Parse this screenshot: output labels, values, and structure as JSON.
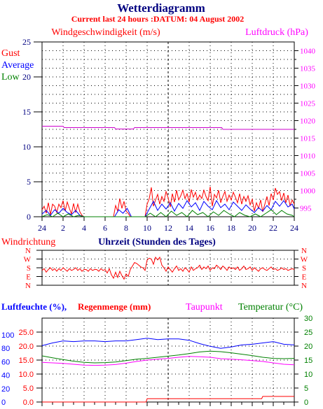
{
  "page": {
    "title": "Wetterdiagramm",
    "subtitle": "Current last 24 hours :DATUM: 04 August 2002"
  },
  "colors": {
    "red": "#ff0000",
    "blue": "#0000ff",
    "green": "#008000",
    "magenta": "#ff00ff",
    "navy": "#000080",
    "black": "#000000"
  },
  "chart_data": [
    {
      "id": "wind",
      "type": "line",
      "title": "Windgeschwindigkeit (m/s)",
      "y2_title": "Luftdruck (hPa)",
      "legend_labels": [
        "Gust",
        "Average",
        "Low"
      ],
      "xlabel": "Uhrzeit (Stunden des Tages)",
      "x_ticks": [
        "24",
        "2",
        "4",
        "6",
        "8",
        "10",
        "12",
        "14",
        "16",
        "18",
        "20",
        "22",
        "24"
      ],
      "y_ticks": [
        "0",
        "5",
        "10",
        "15",
        "20",
        "25"
      ],
      "ylim": [
        0,
        25
      ],
      "y2_ticks": [
        "995",
        "1000",
        "1005",
        "1010",
        "1015",
        "1020",
        "1025",
        "1030",
        "1035",
        "1040"
      ],
      "y2lim": [
        992.5,
        1042.5
      ],
      "x_range_hours": [
        0,
        24
      ],
      "grid": true,
      "series": [
        {
          "name": "Gust",
          "color": "#ff0000",
          "x": [
            0.0,
            0.2,
            0.4,
            0.6,
            0.8,
            1.0,
            1.2,
            1.4,
            1.6,
            1.8,
            2.0,
            2.2,
            2.4,
            2.6,
            2.8,
            3.0,
            3.2,
            3.4,
            3.6,
            3.8,
            4.0,
            5.0,
            6.0,
            6.8,
            7.0,
            7.2,
            7.4,
            7.6,
            7.8,
            8.0,
            8.2,
            8.4,
            8.6,
            8.8,
            9.0,
            9.4,
            9.8,
            10.0,
            10.2,
            10.4,
            10.6,
            10.8,
            11.0,
            11.2,
            11.4,
            11.6,
            11.8,
            12.0,
            12.2,
            12.4,
            12.6,
            12.8,
            13.0,
            13.2,
            13.4,
            13.6,
            13.8,
            14.0,
            14.2,
            14.4,
            14.6,
            14.8,
            15.0,
            15.2,
            15.4,
            15.6,
            15.8,
            16.0,
            16.2,
            16.4,
            16.6,
            16.8,
            17.0,
            17.2,
            17.4,
            17.6,
            17.8,
            18.0,
            18.2,
            18.4,
            18.6,
            18.8,
            19.0,
            19.2,
            19.4,
            19.6,
            19.8,
            20.0,
            20.2,
            20.4,
            20.6,
            20.8,
            21.0,
            21.2,
            21.4,
            21.6,
            21.8,
            22.0,
            22.2,
            22.4,
            22.6,
            22.8,
            23.0,
            23.2,
            23.4,
            23.6,
            23.8,
            24.0
          ],
          "values": [
            1.0,
            1.5,
            0.5,
            2.0,
            0.3,
            1.8,
            1.5,
            0.6,
            1.8,
            1.3,
            2.3,
            0.8,
            2.1,
            1.2,
            0.4,
            1.9,
            0.6,
            1.8,
            0.7,
            0.2,
            0.0,
            0.0,
            0.0,
            0.0,
            1.6,
            0.8,
            2.6,
            1.2,
            2.2,
            0.8,
            0.5,
            0.0,
            0.0,
            0.0,
            0.0,
            0.0,
            0.0,
            1.8,
            2.6,
            4.2,
            1.5,
            2.4,
            3.2,
            1.8,
            2.9,
            2.2,
            3.6,
            2.7,
            1.4,
            3.3,
            2.1,
            3.8,
            2.4,
            3.0,
            3.8,
            2.6,
            3.3,
            2.1,
            3.9,
            2.8,
            3.5,
            2.4,
            3.1,
            2.6,
            3.8,
            2.9,
            2.3,
            4.3,
            1.5,
            3.2,
            2.7,
            3.8,
            2.0,
            2.9,
            3.6,
            2.2,
            3.1,
            2.4,
            3.5,
            2.8,
            2.0,
            3.3,
            1.8,
            2.9,
            2.2,
            3.0,
            1.7,
            2.5,
            0.8,
            2.0,
            1.2,
            2.4,
            0.7,
            1.8,
            2.9,
            1.6,
            3.3,
            2.4,
            4.1,
            3.2,
            3.6,
            2.3,
            3.4,
            2.0,
            3.1,
            1.6,
            2.4,
            1.8
          ]
        },
        {
          "name": "Average",
          "color": "#0000ff",
          "x": [
            0.0,
            0.4,
            0.8,
            1.2,
            1.6,
            2.0,
            2.4,
            2.8,
            3.2,
            3.6,
            4.0,
            6.9,
            7.3,
            7.7,
            8.1,
            8.5,
            9.8,
            10.2,
            10.6,
            11.0,
            11.4,
            11.8,
            12.2,
            12.6,
            13.0,
            13.4,
            13.8,
            14.2,
            14.6,
            15.0,
            15.4,
            15.8,
            16.2,
            16.6,
            17.0,
            17.4,
            17.8,
            18.2,
            18.6,
            19.0,
            19.4,
            19.8,
            20.2,
            20.6,
            21.0,
            21.4,
            21.8,
            22.2,
            22.6,
            23.0,
            23.4,
            23.8,
            24.0
          ],
          "values": [
            0.4,
            0.9,
            0.2,
            1.0,
            0.5,
            1.2,
            0.6,
            0.3,
            0.9,
            0.2,
            0.0,
            0.0,
            1.0,
            0.5,
            1.2,
            0.0,
            0.0,
            1.1,
            2.2,
            0.9,
            1.8,
            1.1,
            2.0,
            0.8,
            1.9,
            1.2,
            2.3,
            1.4,
            2.0,
            0.9,
            2.2,
            1.5,
            1.0,
            2.3,
            1.3,
            1.8,
            1.0,
            2.1,
            1.5,
            0.9,
            1.7,
            1.1,
            0.6,
            1.3,
            0.8,
            1.6,
            1.0,
            2.2,
            1.5,
            2.3,
            1.4,
            1.8,
            1.1
          ]
        },
        {
          "name": "Low",
          "color": "#008000",
          "x": [
            0.0,
            0.5,
            1.0,
            1.5,
            2.0,
            2.5,
            3.0,
            3.5,
            4.0,
            9.8,
            10.3,
            10.8,
            11.3,
            11.8,
            12.3,
            12.8,
            13.3,
            13.8,
            14.3,
            14.8,
            15.3,
            15.8,
            16.3,
            16.8,
            17.3,
            17.8,
            18.3,
            18.8,
            19.3,
            19.8,
            20.3,
            20.8,
            21.3,
            21.8,
            22.3,
            22.8,
            23.3,
            23.8,
            24.0
          ],
          "values": [
            0.0,
            0.3,
            0.0,
            0.5,
            0.0,
            0.4,
            0.0,
            0.2,
            0.0,
            0.0,
            0.5,
            0.0,
            0.6,
            0.0,
            0.8,
            0.2,
            0.6,
            0.0,
            0.9,
            0.3,
            0.6,
            0.0,
            0.7,
            0.2,
            0.9,
            0.4,
            0.0,
            0.6,
            0.2,
            0.0,
            0.4,
            0.0,
            0.5,
            1.0,
            0.3,
            0.9,
            0.4,
            0.2,
            0.0
          ]
        },
        {
          "name": "Luftdruck",
          "axis": "y2",
          "color": "#cc00cc",
          "x": [
            0.0,
            2.0,
            2.1,
            6.9,
            7.0,
            8.7,
            8.8,
            17.1,
            17.2,
            24.0
          ],
          "values": [
            1018.4,
            1018.4,
            1018.0,
            1018.0,
            1017.6,
            1017.6,
            1018.0,
            1018.0,
            1017.5,
            1017.5
          ]
        }
      ]
    },
    {
      "id": "direction",
      "type": "line",
      "title": "Windrichtung",
      "y_ticks": [
        "N",
        "W",
        "S",
        "E",
        "N"
      ],
      "ylim": [
        0,
        4
      ],
      "x_range_hours": [
        0,
        24
      ],
      "grid": true,
      "series": [
        {
          "name": "Windrichtung",
          "color": "#ff0000",
          "x": [
            0.0,
            0.2,
            0.4,
            0.6,
            0.8,
            1.0,
            1.2,
            1.4,
            1.6,
            1.8,
            2.0,
            2.2,
            2.4,
            2.6,
            2.8,
            3.0,
            3.2,
            3.4,
            3.6,
            3.8,
            4.0,
            4.2,
            4.4,
            4.6,
            4.8,
            5.0,
            5.2,
            5.4,
            5.6,
            5.8,
            6.0,
            6.2,
            6.4,
            6.6,
            6.8,
            7.0,
            7.2,
            7.4,
            7.6,
            7.8,
            8.0,
            8.2,
            8.4,
            8.6,
            8.8,
            9.0,
            9.2,
            9.4,
            9.6,
            9.8,
            10.0,
            10.2,
            10.4,
            10.6,
            10.8,
            11.0,
            11.2,
            11.4,
            11.6,
            11.8,
            12.0,
            12.2,
            12.4,
            12.6,
            12.8,
            13.0,
            13.2,
            13.4,
            13.6,
            13.8,
            14.0,
            14.2,
            14.4,
            14.6,
            14.8,
            15.0,
            15.2,
            15.4,
            15.6,
            15.8,
            16.0,
            16.2,
            16.4,
            16.6,
            16.8,
            17.0,
            17.2,
            17.4,
            17.6,
            17.8,
            18.0,
            18.2,
            18.4,
            18.6,
            18.8,
            19.0,
            19.2,
            19.4,
            19.6,
            19.8,
            20.0,
            20.2,
            20.4,
            20.6,
            20.8,
            21.0,
            21.2,
            21.4,
            21.6,
            21.8,
            22.0,
            22.2,
            22.4,
            22.6,
            22.8,
            23.0,
            23.2,
            23.4,
            23.6,
            23.8,
            24.0
          ],
          "values": [
            1.7,
            1.9,
            1.5,
            1.8,
            2.0,
            1.7,
            1.9,
            1.6,
            1.9,
            1.7,
            2.0,
            1.8,
            1.6,
            1.9,
            1.7,
            1.8,
            2.0,
            1.7,
            1.9,
            1.6,
            1.8,
            1.8,
            1.6,
            1.9,
            1.7,
            1.8,
            1.8,
            1.6,
            1.9,
            1.7,
            1.8,
            1.4,
            1.9,
            1.2,
            0.8,
            1.5,
            0.9,
            1.6,
            1.1,
            0.7,
            1.3,
            1.0,
            1.8,
            2.2,
            2.6,
            2.5,
            2.3,
            2.1,
            2.0,
            1.7,
            2.9,
            3.1,
            3.0,
            2.4,
            3.2,
            2.9,
            3.2,
            2.3,
            2.0,
            1.6,
            2.1,
            1.8,
            1.5,
            1.9,
            2.2,
            1.7,
            1.9,
            1.6,
            2.0,
            1.8,
            1.5,
            2.1,
            1.7,
            1.9,
            2.0,
            2.3,
            1.8,
            2.1,
            1.9,
            2.2,
            1.7,
            2.0,
            1.9,
            2.3,
            2.1,
            1.8,
            2.2,
            2.0,
            1.7,
            2.1,
            1.9,
            2.0,
            1.8,
            2.1,
            1.7,
            1.9,
            2.2,
            1.8,
            1.9,
            2.1,
            1.7,
            2.0,
            1.8,
            1.6,
            1.9,
            2.0,
            1.8,
            1.7,
            1.9,
            2.1,
            1.8,
            1.9,
            1.7,
            1.8,
            2.0,
            1.8,
            1.9,
            1.7,
            1.8,
            1.9,
            1.8
          ]
        }
      ]
    },
    {
      "id": "humidity",
      "type": "line",
      "title_humidity": "Luftfeuchte (%),",
      "title_rain": "Regenmenge (mm)",
      "title_dewpoint": "Taupunkt",
      "title_temperature": "Temperatur (°C)",
      "y_ticks_humidity": [
        "0",
        "20",
        "40",
        "60",
        "80",
        "100"
      ],
      "ylim_humidity": [
        0,
        125
      ],
      "y_ticks_rain": [
        "0.0",
        "5.0",
        "10.0",
        "15.0",
        "20.0",
        "25.0"
      ],
      "ylim_rain": [
        0,
        30
      ],
      "y_ticks_temperature": [
        "0",
        "5",
        "10",
        "15",
        "20",
        "25",
        "30"
      ],
      "ylim_temperature": [
        0,
        30
      ],
      "x_range_hours": [
        0,
        24
      ],
      "grid": true,
      "series": [
        {
          "name": "Luftfeuchte",
          "axis": "humidity",
          "color": "#0000ff",
          "x": [
            0,
            1,
            2,
            3,
            4,
            5,
            6,
            7,
            8,
            9,
            10,
            11,
            12,
            13,
            14,
            15,
            16,
            17,
            18,
            19,
            20,
            21,
            22,
            23,
            24
          ],
          "values": [
            84,
            88,
            91,
            90,
            91,
            91,
            90,
            91,
            91,
            93,
            95,
            93,
            94,
            94,
            92,
            87,
            83,
            80,
            82,
            85,
            86,
            88,
            90,
            86,
            85
          ]
        },
        {
          "name": "Temperatur",
          "axis": "temperature",
          "color": "#008000",
          "x": [
            0,
            1,
            2,
            3,
            4,
            5,
            6,
            7,
            8,
            9,
            10,
            11,
            12,
            13,
            14,
            15,
            16,
            17,
            18,
            19,
            20,
            21,
            22,
            23,
            24
          ],
          "values": [
            16.5,
            15.8,
            15.2,
            14.6,
            14.2,
            14.0,
            14.1,
            14.3,
            14.8,
            15.3,
            15.6,
            16.0,
            16.4,
            16.8,
            17.3,
            17.9,
            18.2,
            18.0,
            17.6,
            17.1,
            16.6,
            16.0,
            15.6,
            15.5,
            15.6
          ]
        },
        {
          "name": "Taupunkt",
          "axis": "temperature",
          "color": "#ff00ff",
          "x": [
            0,
            1,
            2,
            3,
            4,
            5,
            6,
            7,
            8,
            9,
            10,
            11,
            12,
            13,
            14,
            15,
            16,
            17,
            18,
            19,
            20,
            21,
            22,
            23,
            24
          ],
          "values": [
            14.2,
            14.0,
            13.8,
            13.5,
            13.2,
            13.1,
            13.2,
            13.4,
            13.9,
            14.5,
            15.0,
            15.3,
            15.6,
            16.0,
            16.3,
            16.2,
            16.0,
            15.5,
            15.3,
            15.1,
            14.8,
            14.5,
            14.0,
            13.5,
            13.3
          ]
        },
        {
          "name": "Regenmenge",
          "axis": "rain",
          "color": "#ff0000",
          "x": [
            0,
            9.9,
            10.0,
            20.9,
            21.0,
            24
          ],
          "values": [
            0.0,
            0.0,
            1.2,
            1.2,
            2.0,
            2.0
          ]
        }
      ]
    }
  ]
}
